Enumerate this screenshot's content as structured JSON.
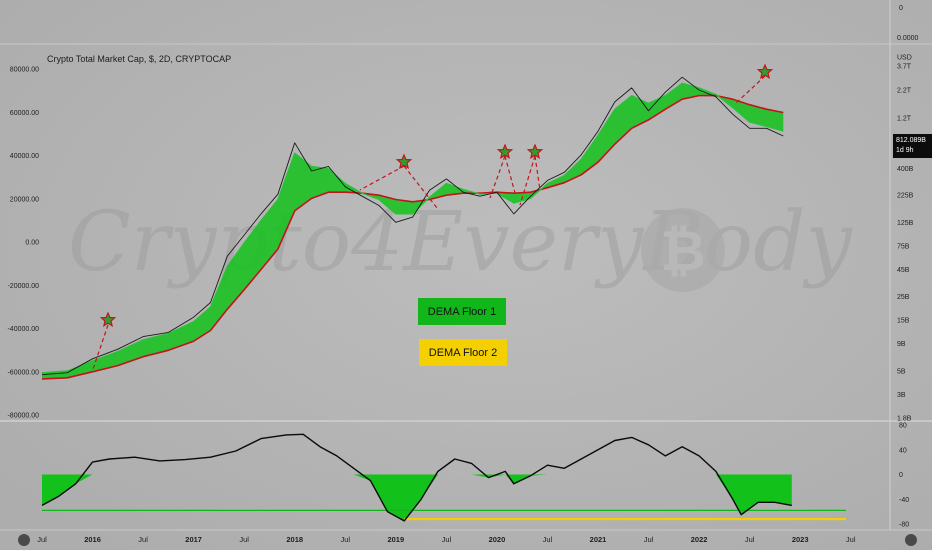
{
  "title": "Crypto Total Market Cap, $, 2D, CRYPTOCAP",
  "watermark": "Crypto4EveryBody",
  "price_label": {
    "value": "812.089B",
    "countdown": "1d 9h"
  },
  "left_axis_ticks": [
    "80000.00",
    "60000.00",
    "40000.00",
    "20000.00",
    "0.00",
    "-20000.00",
    "-40000.00",
    "-60000.00",
    "-80000.00"
  ],
  "right_axis_ticks": [
    "USD",
    "3.7T",
    "2.2T",
    "1.2T",
    "400B",
    "225B",
    "125B",
    "75B",
    "45B",
    "25B",
    "15B",
    "9B",
    "5B",
    "3B",
    "1.8B"
  ],
  "right_axis_top": [
    "0",
    "0.0000"
  ],
  "osc_axis_ticks": [
    "80",
    "40",
    "0",
    "-40",
    "-80"
  ],
  "x_ticks": [
    "Jul",
    "2016",
    "Jul",
    "2017",
    "Jul",
    "2018",
    "Jul",
    "2019",
    "Jul",
    "2020",
    "Jul",
    "2021",
    "Jul",
    "2022",
    "Jul",
    "2023",
    "Jul"
  ],
  "year_labels": [
    "2016",
    "2017",
    "2018",
    "2019",
    "2020",
    "2021",
    "2022",
    "2023"
  ],
  "legend": [
    {
      "label": "DEMA Floor 1",
      "color": "#12b51a"
    },
    {
      "label": "DEMA Floor 2",
      "color": "#f5d000"
    }
  ],
  "colors": {
    "price": "#1a1a1a",
    "ema_fast": "#27c437",
    "ema_slow": "#c2141c",
    "fill": "#12c21a",
    "osc_line": "#0a0a0a",
    "floor1": "#12b51a",
    "floor2": "#f5d000",
    "star": "#2da12f",
    "star_border": "#c0161c"
  },
  "chart_data": {
    "type": "line",
    "title": "Crypto Total Market Cap, $, 2D, CRYPTOCAP",
    "yscale": "log",
    "ylim": [
      1.8,
      3700
    ],
    "y_unit": "B USD",
    "x": [
      "2015-07",
      "2015-10",
      "2016-01",
      "2016-04",
      "2016-07",
      "2016-10",
      "2017-01",
      "2017-03",
      "2017-05",
      "2017-07",
      "2017-09",
      "2017-11",
      "2018-01",
      "2018-03",
      "2018-05",
      "2018-07",
      "2018-09",
      "2018-11",
      "2019-01",
      "2019-03",
      "2019-05",
      "2019-07",
      "2019-09",
      "2019-11",
      "2020-01",
      "2020-03",
      "2020-05",
      "2020-07",
      "2020-09",
      "2020-11",
      "2021-01",
      "2021-03",
      "2021-05",
      "2021-07",
      "2021-09",
      "2021-11",
      "2022-01",
      "2022-03",
      "2022-05",
      "2022-07",
      "2022-09",
      "2022-11"
    ],
    "series": [
      {
        "values": [
          4.6,
          4.8,
          6.5,
          8.0,
          10.5,
          11.5,
          16,
          22,
          60,
          95,
          150,
          230,
          700,
          380,
          420,
          270,
          220,
          180,
          125,
          140,
          250,
          320,
          240,
          220,
          240,
          150,
          220,
          310,
          370,
          540,
          900,
          1700,
          2300,
          1400,
          2100,
          2900,
          2200,
          1900,
          1300,
          960,
          960,
          812
        ]
      },
      {
        "values": [
          4.8,
          5.0,
          6.2,
          7.6,
          9.8,
          11.2,
          14.5,
          20,
          48,
          80,
          130,
          205,
          560,
          420,
          400,
          290,
          235,
          205,
          150,
          150,
          215,
          290,
          255,
          230,
          235,
          190,
          210,
          290,
          345,
          490,
          820,
          1450,
          1950,
          1650,
          1950,
          2550,
          2300,
          2000,
          1500,
          1100,
          1000,
          900
        ]
      },
      {
        "values": [
          4.2,
          4.3,
          4.9,
          5.6,
          6.8,
          7.8,
          9.5,
          12,
          19,
          29,
          45,
          70,
          160,
          210,
          240,
          240,
          235,
          225,
          205,
          195,
          205,
          225,
          235,
          235,
          240,
          235,
          240,
          265,
          295,
          350,
          460,
          680,
          960,
          1150,
          1450,
          1800,
          1950,
          1950,
          1800,
          1600,
          1450,
          1350
        ]
      }
    ],
    "oscillator": {
      "ylim": [
        -80,
        80
      ],
      "x": [
        "2015-07",
        "2015-09",
        "2015-11",
        "2016-01",
        "2016-03",
        "2016-06",
        "2016-09",
        "2016-12",
        "2017-03",
        "2017-06",
        "2017-09",
        "2017-12",
        "2018-02",
        "2018-04",
        "2018-06",
        "2018-08",
        "2018-10",
        "2018-12",
        "2019-02",
        "2019-04",
        "2019-06",
        "2019-08",
        "2019-10",
        "2019-12",
        "2020-02",
        "2020-03",
        "2020-05",
        "2020-07",
        "2020-09",
        "2020-11",
        "2021-01",
        "2021-03",
        "2021-05",
        "2021-07",
        "2021-09",
        "2021-11",
        "2022-01",
        "2022-03",
        "2022-05",
        "2022-06",
        "2022-08",
        "2022-10",
        "2022-12"
      ],
      "values": [
        -50,
        -35,
        -15,
        20,
        25,
        28,
        22,
        24,
        28,
        38,
        58,
        64,
        65,
        45,
        30,
        10,
        -10,
        -60,
        -75,
        -40,
        5,
        25,
        18,
        -5,
        5,
        -15,
        -2,
        15,
        10,
        25,
        40,
        55,
        60,
        48,
        30,
        45,
        30,
        5,
        -40,
        -65,
        -45,
        -45,
        -50
      ],
      "floor1": -58,
      "floor2": -72
    }
  }
}
